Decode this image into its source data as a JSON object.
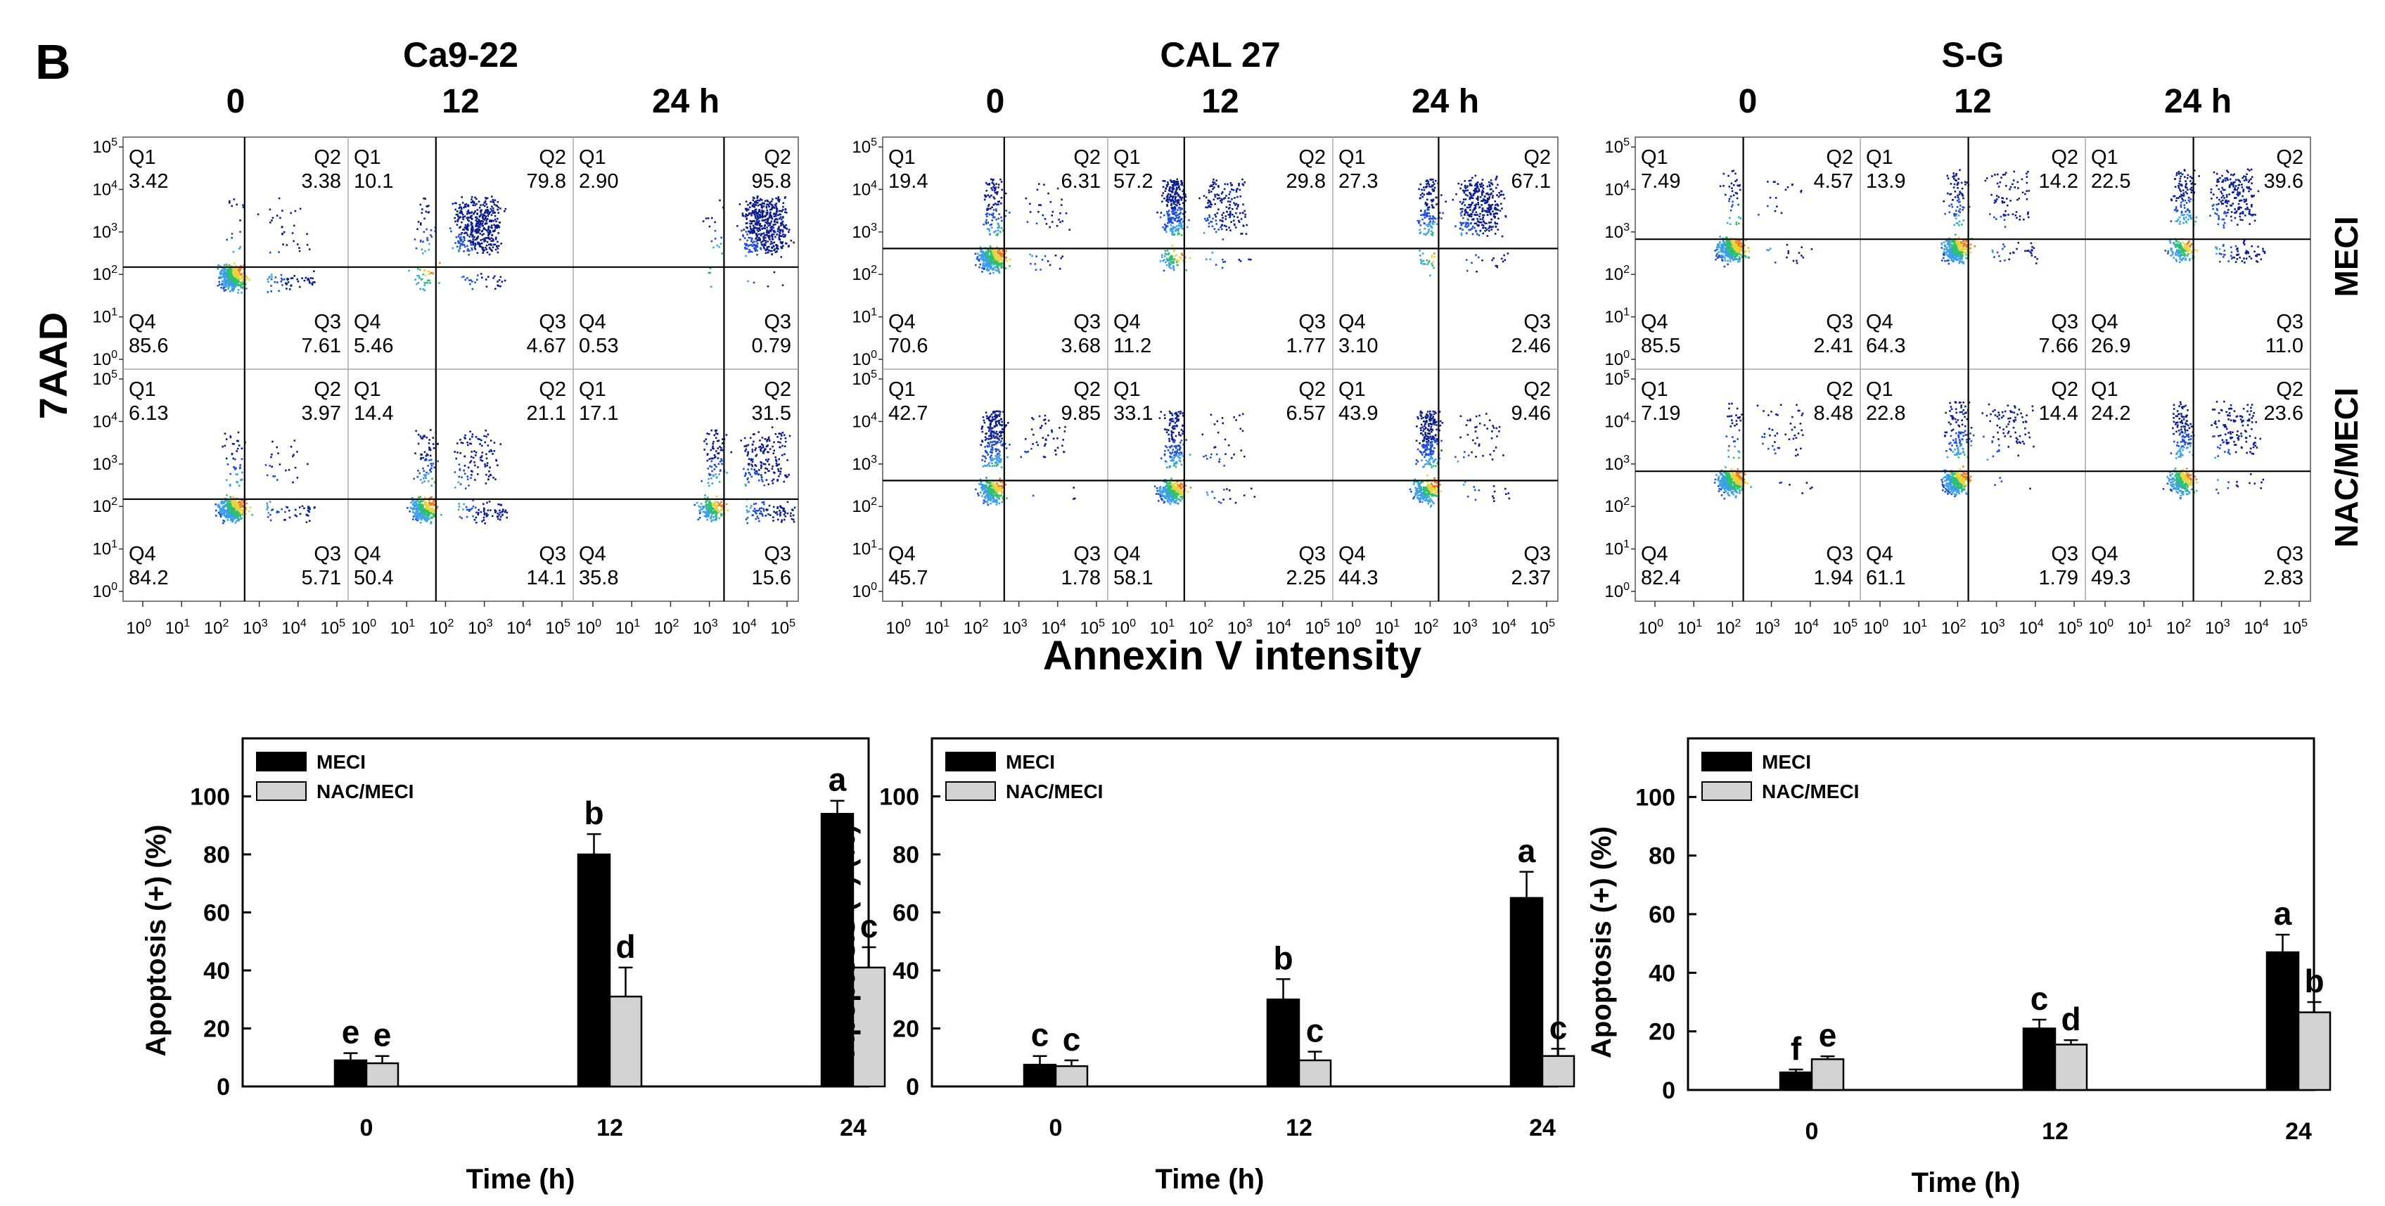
{
  "figure": {
    "panel_letter": "B",
    "y_axis_label": "7AAD",
    "x_axis_label": "Annexin V intensity",
    "row_labels": [
      "MECI",
      "NAC/MECI"
    ],
    "decade_ticks": [
      "10^0",
      "10^1",
      "10^2",
      "10^3",
      "10^4",
      "10^5"
    ]
  },
  "chart_data": [
    {
      "type": "scatter",
      "cell_line": "Ca9-22",
      "time_labels": [
        "0",
        "12",
        "24 h"
      ],
      "rows": [
        {
          "treatment": "MECI",
          "cells": [
            {
              "Q1": "3.42",
              "Q2": "3.38",
              "Q3": "7.61",
              "Q4": "85.6"
            },
            {
              "Q1": "10.1",
              "Q2": "79.8",
              "Q3": "4.67",
              "Q4": "5.46"
            },
            {
              "Q1": "2.90",
              "Q2": "95.8",
              "Q3": "0.79",
              "Q4": "0.53"
            }
          ]
        },
        {
          "treatment": "NAC/MECI",
          "cells": [
            {
              "Q1": "6.13",
              "Q2": "3.97",
              "Q3": "5.71",
              "Q4": "84.2"
            },
            {
              "Q1": "14.4",
              "Q2": "21.1",
              "Q3": "14.1",
              "Q4": "50.4"
            },
            {
              "Q1": "17.1",
              "Q2": "31.5",
              "Q3": "15.6",
              "Q4": "35.8"
            }
          ]
        }
      ]
    },
    {
      "type": "scatter",
      "cell_line": "CAL 27",
      "time_labels": [
        "0",
        "12",
        "24 h"
      ],
      "rows": [
        {
          "treatment": "MECI",
          "cells": [
            {
              "Q1": "19.4",
              "Q2": "6.31",
              "Q3": "3.68",
              "Q4": "70.6"
            },
            {
              "Q1": "57.2",
              "Q2": "29.8",
              "Q3": "1.77",
              "Q4": "11.2"
            },
            {
              "Q1": "27.3",
              "Q2": "67.1",
              "Q3": "2.46",
              "Q4": "3.10"
            }
          ]
        },
        {
          "treatment": "NAC/MECI",
          "cells": [
            {
              "Q1": "42.7",
              "Q2": "9.85",
              "Q3": "1.78",
              "Q4": "45.7"
            },
            {
              "Q1": "33.1",
              "Q2": "6.57",
              "Q3": "2.25",
              "Q4": "58.1"
            },
            {
              "Q1": "43.9",
              "Q2": "9.46",
              "Q3": "2.37",
              "Q4": "44.3"
            }
          ]
        }
      ]
    },
    {
      "type": "scatter",
      "cell_line": "S-G",
      "time_labels": [
        "0",
        "12",
        "24 h"
      ],
      "rows": [
        {
          "treatment": "MECI",
          "cells": [
            {
              "Q1": "7.49",
              "Q2": "4.57",
              "Q3": "2.41",
              "Q4": "85.5"
            },
            {
              "Q1": "13.9",
              "Q2": "14.2",
              "Q3": "7.66",
              "Q4": "64.3"
            },
            {
              "Q1": "22.5",
              "Q2": "39.6",
              "Q3": "11.0",
              "Q4": "26.9"
            }
          ]
        },
        {
          "treatment": "NAC/MECI",
          "cells": [
            {
              "Q1": "7.19",
              "Q2": "8.48",
              "Q3": "1.94",
              "Q4": "82.4"
            },
            {
              "Q1": "22.8",
              "Q2": "14.4",
              "Q3": "1.79",
              "Q4": "61.1"
            },
            {
              "Q1": "24.2",
              "Q2": "23.6",
              "Q3": "2.83",
              "Q4": "49.3"
            }
          ]
        }
      ]
    },
    {
      "type": "bar",
      "panel": "Ca9-22",
      "categories": [
        "0",
        "12",
        "24"
      ],
      "xlabel": "Time (h)",
      "ylabel": "Apoptosis (+) (%)",
      "ylim": [
        0,
        120
      ],
      "yticks": [
        0,
        20,
        40,
        60,
        80,
        100
      ],
      "series": [
        {
          "name": "MECI",
          "color": "#000000",
          "values": [
            9,
            80,
            94
          ],
          "errors": [
            2.5,
            7,
            4.5
          ],
          "letters": [
            "e",
            "b",
            "a"
          ]
        },
        {
          "name": "NAC/MECI",
          "color": "#d3d3d3",
          "values": [
            8,
            31,
            41
          ],
          "errors": [
            2.5,
            10,
            7
          ],
          "letters": [
            "e",
            "d",
            "c"
          ]
        }
      ]
    },
    {
      "type": "bar",
      "panel": "CAL 27",
      "categories": [
        "0",
        "12",
        "24"
      ],
      "xlabel": "Time (h)",
      "ylabel": "Apoptosis (+) (%)",
      "ylim": [
        0,
        120
      ],
      "yticks": [
        0,
        20,
        40,
        60,
        80,
        100
      ],
      "series": [
        {
          "name": "MECI",
          "color": "#000000",
          "values": [
            7.5,
            30,
            65
          ],
          "errors": [
            3,
            7,
            9
          ],
          "letters": [
            "c",
            "b",
            "a"
          ]
        },
        {
          "name": "NAC/MECI",
          "color": "#d3d3d3",
          "values": [
            7,
            9,
            10.5
          ],
          "errors": [
            2,
            3,
            2.5
          ],
          "letters": [
            "c",
            "c",
            "c"
          ]
        }
      ]
    },
    {
      "type": "bar",
      "panel": "S-G",
      "categories": [
        "0",
        "12",
        "24"
      ],
      "xlabel": "Time (h)",
      "ylabel": "Apoptosis (+) (%)",
      "ylim": [
        0,
        120
      ],
      "yticks": [
        0,
        20,
        40,
        60,
        80,
        100
      ],
      "series": [
        {
          "name": "MECI",
          "color": "#000000",
          "values": [
            6,
            21,
            47
          ],
          "errors": [
            1,
            3,
            6
          ],
          "letters": [
            "f",
            "c",
            "a"
          ]
        },
        {
          "name": "NAC/MECI",
          "color": "#d3d3d3",
          "values": [
            10.5,
            15.5,
            26.5
          ],
          "errors": [
            1,
            1.5,
            3.5
          ],
          "letters": [
            "e",
            "d",
            "b"
          ]
        }
      ]
    }
  ]
}
